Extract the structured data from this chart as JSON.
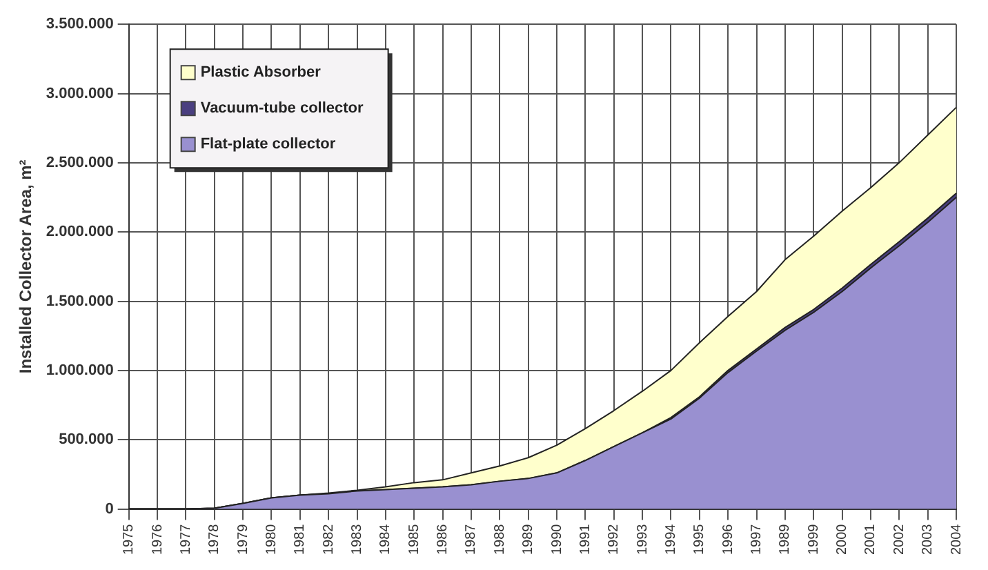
{
  "chart_data": {
    "type": "area",
    "stacked": true,
    "ylabel": "Installed Collector Area, m²",
    "categories": [
      "1975",
      "1976",
      "1977",
      "1978",
      "1979",
      "1980",
      "1981",
      "1982",
      "1983",
      "1984",
      "1985",
      "1986",
      "1987",
      "1988",
      "1989",
      "1990",
      "1991",
      "1992",
      "1993",
      "1994",
      "1995",
      "1996",
      "1997",
      "1989",
      "1999",
      "2000",
      "2001",
      "2002",
      "2003",
      "2004"
    ],
    "series": [
      {
        "name": "Flat-plate collector",
        "color": "#9990d0",
        "values": [
          0,
          0,
          0,
          5000,
          40000,
          80000,
          100000,
          110000,
          130000,
          140000,
          150000,
          160000,
          175000,
          200000,
          220000,
          260000,
          350000,
          450000,
          550000,
          650000,
          800000,
          985000,
          1140000,
          1290000,
          1420000,
          1570000,
          1740000,
          1900000,
          2070000,
          2250000
        ]
      },
      {
        "name": "Vacuum-tube collector",
        "color": "#4a3f80",
        "values": [
          0,
          0,
          0,
          0,
          0,
          0,
          0,
          0,
          0,
          0,
          0,
          0,
          0,
          0,
          0,
          0,
          0,
          0,
          0,
          10000,
          10000,
          15000,
          15000,
          20000,
          20000,
          25000,
          25000,
          30000,
          30000,
          30000
        ]
      },
      {
        "name": "Plastic Absorber",
        "color": "#ffffcc",
        "values": [
          0,
          0,
          0,
          0,
          0,
          0,
          0,
          5000,
          5000,
          20000,
          40000,
          50000,
          85000,
          110000,
          150000,
          200000,
          230000,
          260000,
          300000,
          340000,
          390000,
          390000,
          415000,
          490000,
          530000,
          555000,
          555000,
          570000,
          600000,
          620000
        ]
      }
    ],
    "ylim": [
      0,
      3500000
    ],
    "yticks": [
      {
        "value": 0,
        "label": "0"
      },
      {
        "value": 500000,
        "label": "500.000"
      },
      {
        "value": 1000000,
        "label": "1.000.000"
      },
      {
        "value": 1500000,
        "label": "1.500.000"
      },
      {
        "value": 2000000,
        "label": "2.000.000"
      },
      {
        "value": 2500000,
        "label": "2.500.000"
      },
      {
        "value": 3000000,
        "label": "3.000.000"
      },
      {
        "value": 3500000,
        "label": "3.500.000"
      }
    ],
    "grid": true,
    "legend": "top left"
  }
}
